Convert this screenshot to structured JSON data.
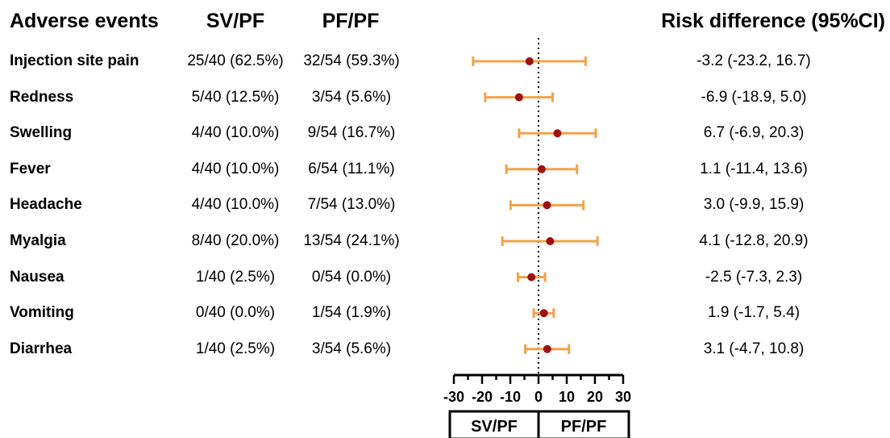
{
  "headers": {
    "event": "Adverse events",
    "group1": "SV/PF",
    "group2": "PF/PF",
    "effect": "Risk difference (95%CI)"
  },
  "rows": [
    {
      "name": "Injection site pain",
      "g1": "25/40 (62.5%)",
      "g2": "32/54 (59.3%)",
      "rd": "-3.2 (-23.2, 16.7)"
    },
    {
      "name": "Redness",
      "g1": "5/40 (12.5%)",
      "g2": "3/54 (5.6%)",
      "rd": "-6.9 (-18.9, 5.0)"
    },
    {
      "name": "Swelling",
      "g1": "4/40 (10.0%)",
      "g2": "9/54 (16.7%)",
      "rd": "6.7 (-6.9, 20.3)"
    },
    {
      "name": "Fever",
      "g1": "4/40 (10.0%)",
      "g2": "6/54 (11.1%)",
      "rd": "1.1 (-11.4, 13.6)"
    },
    {
      "name": "Headache",
      "g1": "4/40 (10.0%)",
      "g2": "7/54 (13.0%)",
      "rd": "3.0 (-9.9, 15.9)"
    },
    {
      "name": "Myalgia",
      "g1": "8/40 (20.0%)",
      "g2": "13/54 (24.1%)",
      "rd": "4.1 (-12.8, 20.9)"
    },
    {
      "name": "Nausea",
      "g1": "1/40 (2.5%)",
      "g2": "0/54 (0.0%)",
      "rd": "-2.5 (-7.3, 2.3)"
    },
    {
      "name": "Vomiting",
      "g1": "0/40 (0.0%)",
      "g2": "1/54 (1.9%)",
      "rd": "1.9 (-1.7, 5.4)"
    },
    {
      "name": "Diarrhea",
      "g1": "1/40 (2.5%)",
      "g2": "3/54 (5.6%)",
      "rd": "3.1 (-4.7, 10.8)"
    }
  ],
  "chart_data": {
    "type": "forest",
    "categories": [
      "Injection site pain",
      "Redness",
      "Swelling",
      "Fever",
      "Headache",
      "Myalgia",
      "Nausea",
      "Vomiting",
      "Diarrhea"
    ],
    "estimate": [
      -3.2,
      -6.9,
      6.7,
      1.1,
      3.0,
      4.1,
      -2.5,
      1.9,
      3.1
    ],
    "ci_low": [
      -23.2,
      -18.9,
      -6.9,
      -11.4,
      -9.9,
      -12.8,
      -7.3,
      -1.7,
      -4.7
    ],
    "ci_high": [
      16.7,
      5.0,
      20.3,
      13.6,
      15.9,
      20.9,
      2.3,
      5.4,
      10.8
    ],
    "xlim": [
      -30,
      30
    ],
    "xticks": [
      -30,
      -20,
      -10,
      0,
      10,
      20,
      30
    ],
    "reference_line": 0,
    "favor_labels": [
      "SV/PF",
      "PF/PF"
    ],
    "colors": {
      "ci": "#F4A24A",
      "point": "#A00F0F",
      "axis": "#000000"
    }
  }
}
